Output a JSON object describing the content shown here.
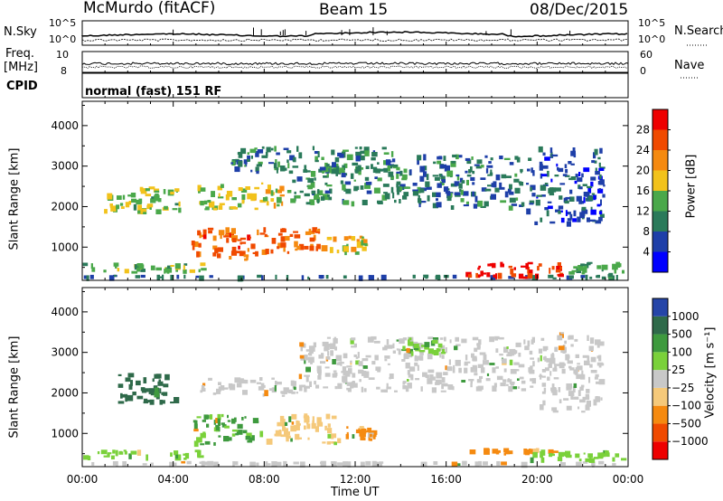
{
  "header": {
    "station": "McMurdo (fitACF)",
    "beam": "Beam 15",
    "date": "08/Dec/2015"
  },
  "status_panels": {
    "nsky_label": "N.Sky",
    "nsearch_label": "N.Search",
    "count_ticks_left": [
      "10^5",
      "10^0"
    ],
    "count_ticks_right": [
      "10^5",
      "10^0"
    ],
    "freq_label_line1": "Freq.",
    "freq_label_line2": "[MHz]",
    "freq_ticks": [
      "10",
      "8"
    ],
    "nave_label": "Nave",
    "nave_ticks": [
      "60",
      "0"
    ],
    "cpid_label": "CPID",
    "cpid_text": "normal (fast) 151 RF"
  },
  "x_axis": {
    "title": "Time UT",
    "ticks": [
      "00:00",
      "04:00",
      "08:00",
      "12:00",
      "16:00",
      "20:00",
      "00:00"
    ]
  },
  "colors": {
    "power": [
      "#0000ff",
      "#1e3fa8",
      "#2a7a5a",
      "#4aa84a",
      "#f2c21b",
      "#f58a10",
      "#f04a00",
      "#ee0000"
    ],
    "velocity": [
      "#ee0000",
      "#f04a00",
      "#f58a10",
      "#f5c97a",
      "#c8c8c8",
      "#7ad13a",
      "#3e9a3e",
      "#2f6a4a",
      "#2545a8"
    ]
  },
  "chart_data": [
    {
      "type": "heatmap",
      "panel": "power",
      "ylabel": "Slant Range [km]",
      "yticks": [
        "1000",
        "2000",
        "3000",
        "4000"
      ],
      "xlim": [
        0,
        24
      ],
      "ylim": [
        180,
        4600
      ],
      "colorbar_label": "Power [dB]",
      "colorbar_ticks": [
        "4",
        "8",
        "12",
        "16",
        "20",
        "24",
        "28"
      ],
      "colorbar_range": [
        0,
        32
      ],
      "regions": [
        {
          "t0": 0.0,
          "t1": 24.0,
          "r0": 200,
          "r1": 320,
          "value": 8
        },
        {
          "t0": 0.0,
          "t1": 5.5,
          "r0": 320,
          "r1": 620,
          "value": 14
        },
        {
          "t0": 16.8,
          "t1": 21.3,
          "r0": 200,
          "r1": 650,
          "value": 29
        },
        {
          "t0": 21.3,
          "t1": 24.0,
          "r0": 200,
          "r1": 650,
          "value": 12
        },
        {
          "t0": 4.8,
          "t1": 7.8,
          "r0": 650,
          "r1": 1500,
          "value": 25
        },
        {
          "t0": 7.8,
          "t1": 10.5,
          "r0": 800,
          "r1": 1500,
          "value": 24
        },
        {
          "t0": 10.5,
          "t1": 12.6,
          "r0": 800,
          "r1": 1300,
          "value": 18
        },
        {
          "t0": 0.9,
          "t1": 4.5,
          "r0": 1800,
          "r1": 2500,
          "value": 15
        },
        {
          "t0": 5.0,
          "t1": 9.0,
          "r0": 1900,
          "r1": 2600,
          "value": 17
        },
        {
          "t0": 9.0,
          "t1": 14.5,
          "r0": 2000,
          "r1": 3100,
          "value": 11
        },
        {
          "t0": 14.5,
          "t1": 19.5,
          "r0": 1900,
          "r1": 3300,
          "value": 9
        },
        {
          "t0": 19.5,
          "t1": 23.0,
          "r0": 1500,
          "r1": 3500,
          "value": 7
        },
        {
          "t0": 6.5,
          "t1": 14.0,
          "r0": 2800,
          "r1": 3500,
          "value": 10
        }
      ]
    },
    {
      "type": "heatmap",
      "panel": "velocity",
      "ylabel": "Slant Range [km]",
      "yticks": [
        "1000",
        "2000",
        "3000",
        "4000"
      ],
      "xlim": [
        0,
        24
      ],
      "ylim": [
        180,
        4600
      ],
      "colorbar_label": "Velocity [m s⁻¹]",
      "colorbar_ticks": [
        "1000",
        "500",
        "100",
        "25",
        "−25",
        "−100",
        "−500",
        "−1000"
      ],
      "regions": [
        {
          "t0": 0.0,
          "t1": 24.0,
          "r0": 200,
          "r1": 320,
          "value": 0
        },
        {
          "t0": 0.0,
          "t1": 5.5,
          "r0": 320,
          "r1": 600,
          "value": 60
        },
        {
          "t0": 16.8,
          "t1": 21.0,
          "r0": 450,
          "r1": 650,
          "value": -300
        },
        {
          "t0": 19.5,
          "t1": 24.0,
          "r0": 250,
          "r1": 600,
          "value": 60
        },
        {
          "t0": 4.8,
          "t1": 8.0,
          "r0": 650,
          "r1": 1500,
          "value": 120
        },
        {
          "t0": 8.0,
          "t1": 11.5,
          "r0": 700,
          "r1": 1500,
          "value": -60
        },
        {
          "t0": 11.5,
          "t1": 13.0,
          "r0": 800,
          "r1": 1200,
          "value": -150
        },
        {
          "t0": 1.5,
          "t1": 4.3,
          "r0": 1700,
          "r1": 2500,
          "value": 700
        },
        {
          "t0": 5.0,
          "t1": 9.5,
          "r0": 1900,
          "r1": 2400,
          "value": 0
        },
        {
          "t0": 9.5,
          "t1": 20.0,
          "r0": 2000,
          "r1": 3400,
          "value": 0
        },
        {
          "t0": 14.0,
          "t1": 16.0,
          "r0": 2900,
          "r1": 3400,
          "value": 80
        },
        {
          "t0": 20.0,
          "t1": 23.0,
          "r0": 1500,
          "r1": 3500,
          "value": 10
        }
      ]
    }
  ]
}
